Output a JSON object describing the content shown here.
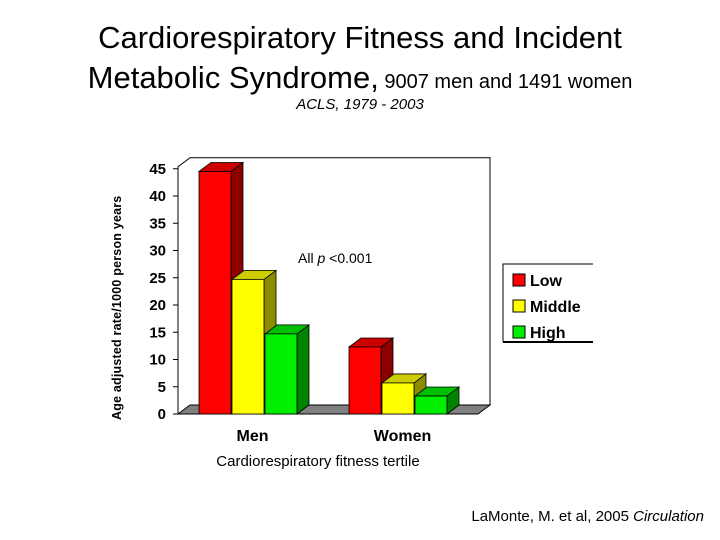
{
  "title": {
    "line1": "Cardiorespiratory Fitness and Incident",
    "line2_main": "Metabolic Syndrome,",
    "line2_small": " 9007 men and 1491 women"
  },
  "subtitle": "ACLS, 1979 - 2003",
  "citation": {
    "authors": "LaMonte, M. et al, 2005 ",
    "journal": "Circulation"
  },
  "annotation": {
    "prefix": "All ",
    "p": "p",
    "suffix": " <0.001"
  },
  "colors": {
    "Low": "#ff0000",
    "Middle": "#ffff00",
    "High": "#00ee00",
    "floor": "#808080"
  },
  "chart_data": {
    "type": "bar",
    "style": "3d",
    "title": "Cardiorespiratory Fitness and Incident Metabolic Syndrome, 9007 men and 1491 women",
    "subtitle": "ACLS, 1979 - 2003",
    "xlabel": "Cardiorespiratory fitness tertile",
    "ylabel": "Age adjusted rate/1000 person years",
    "categories": [
      "Men",
      "Women"
    ],
    "series": [
      {
        "name": "Low",
        "values": [
          44.5,
          12.3
        ]
      },
      {
        "name": "Middle",
        "values": [
          24.7,
          5.7
        ]
      },
      {
        "name": "High",
        "values": [
          14.7,
          3.3
        ]
      }
    ],
    "ylim": [
      0,
      45
    ],
    "yticks": [
      0,
      5,
      10,
      15,
      20,
      25,
      30,
      35,
      40,
      45
    ],
    "grid": false,
    "legend": "right"
  }
}
